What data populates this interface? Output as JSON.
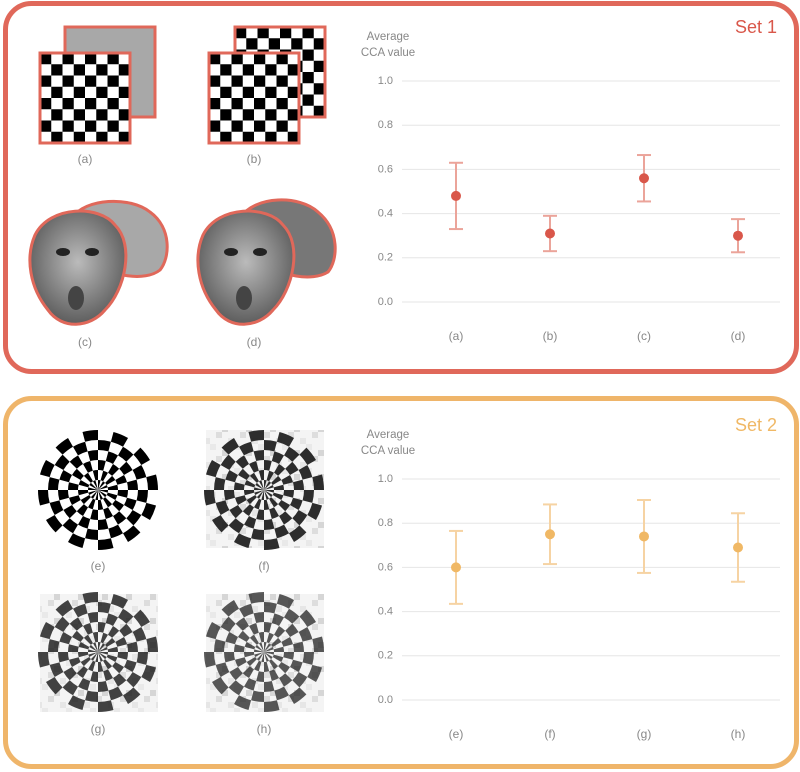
{
  "chart_data": [
    {
      "type": "errorbar",
      "title": "Set 1",
      "ylabel": [
        "Average",
        "CCA value"
      ],
      "categories": [
        "(a)",
        "(b)",
        "(c)",
        "(d)"
      ],
      "values": [
        0.48,
        0.31,
        0.56,
        0.3
      ],
      "errors": [
        0.15,
        0.08,
        0.105,
        0.075
      ],
      "color": "#d9574a",
      "error_color": "#eba49a",
      "ylim": [
        0,
        1
      ],
      "yticks": [
        {
          "value": 0,
          "label": "0.0"
        },
        {
          "value": 0.2,
          "label": "0.2"
        },
        {
          "value": 0.4,
          "label": "0.4"
        },
        {
          "value": 0.6,
          "label": "0.6"
        },
        {
          "value": 0.8,
          "label": "0.8"
        },
        {
          "value": 1,
          "label": "1.0"
        }
      ],
      "grid": true
    },
    {
      "type": "errorbar",
      "title": "Set 2",
      "ylabel": [
        "Average",
        "CCA value"
      ],
      "categories": [
        "(e)",
        "(f)",
        "(g)",
        "(h)"
      ],
      "values": [
        0.6,
        0.75,
        0.74,
        0.69
      ],
      "errors": [
        0.165,
        0.135,
        0.165,
        0.155
      ],
      "color": "#f0b865",
      "error_color": "#f6d3a3",
      "ylim": [
        0,
        1
      ],
      "yticks": [
        {
          "value": 0,
          "label": "0.0"
        },
        {
          "value": 0.2,
          "label": "0.2"
        },
        {
          "value": 0.4,
          "label": "0.4"
        },
        {
          "value": 0.6,
          "label": "0.6"
        },
        {
          "value": 0.8,
          "label": "0.8"
        },
        {
          "value": 1,
          "label": "1.0"
        }
      ],
      "grid": true
    }
  ]
}
